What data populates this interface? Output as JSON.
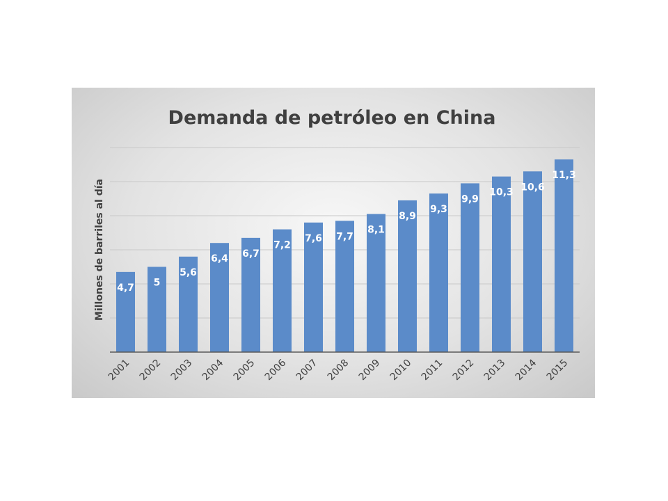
{
  "chart_data": {
    "type": "bar",
    "title": "Demanda de petróleo en China",
    "xlabel": "",
    "ylabel": "Millones de barriles al día",
    "categories": [
      "2001",
      "2002",
      "2003",
      "2004",
      "2005",
      "2006",
      "2007",
      "2008",
      "2009",
      "2010",
      "2011",
      "2012",
      "2013",
      "2014",
      "2015"
    ],
    "values": [
      4.7,
      5,
      5.6,
      6.4,
      6.7,
      7.2,
      7.6,
      7.7,
      8.1,
      8.9,
      9.3,
      9.9,
      10.3,
      10.6,
      11.3
    ],
    "value_labels": [
      "4,7",
      "5",
      "5,6",
      "6,4",
      "6,7",
      "7,2",
      "7,6",
      "7,7",
      "8,1",
      "8,9",
      "9,3",
      "9,9",
      "10,3",
      "10,6",
      "11,3"
    ],
    "ylim": [
      0,
      12
    ],
    "ytick_step": 2,
    "grid": true,
    "legend": "none",
    "bar_color": "#5b8bc9",
    "label_color": "#ffffff"
  }
}
